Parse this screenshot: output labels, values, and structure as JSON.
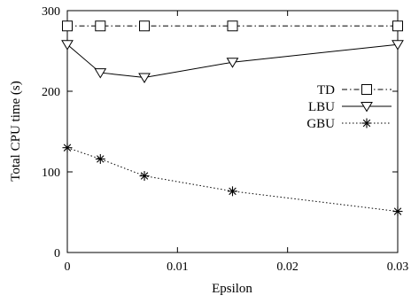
{
  "chart_data": {
    "type": "line",
    "title": "",
    "xlabel": "Epsilon",
    "ylabel": "Total CPU time (s)",
    "xlim": [
      0,
      0.03
    ],
    "ylim": [
      0,
      300
    ],
    "x_ticks": [
      0,
      0.01,
      0.02,
      0.03
    ],
    "x_tick_labels": [
      "0",
      "0.01",
      "0.02",
      "0.03"
    ],
    "y_ticks": [
      0,
      100,
      200,
      300
    ],
    "y_tick_labels": [
      "0",
      "100",
      "200",
      "300"
    ],
    "grid": false,
    "legend_position": "right",
    "series": [
      {
        "name": "TD",
        "x": [
          0,
          0.003,
          0.007,
          0.015,
          0.03
        ],
        "values": [
          281,
          281,
          281,
          281,
          281
        ],
        "line_style": "dash-dot",
        "marker": "square"
      },
      {
        "name": "LBU",
        "x": [
          0,
          0.003,
          0.007,
          0.015,
          0.03
        ],
        "values": [
          258,
          223,
          217,
          236,
          258
        ],
        "line_style": "solid",
        "marker": "triangle-down"
      },
      {
        "name": "GBU",
        "x": [
          0,
          0.003,
          0.007,
          0.015,
          0.03
        ],
        "values": [
          130,
          116,
          95,
          76,
          51
        ],
        "line_style": "dotted",
        "marker": "star"
      }
    ]
  }
}
